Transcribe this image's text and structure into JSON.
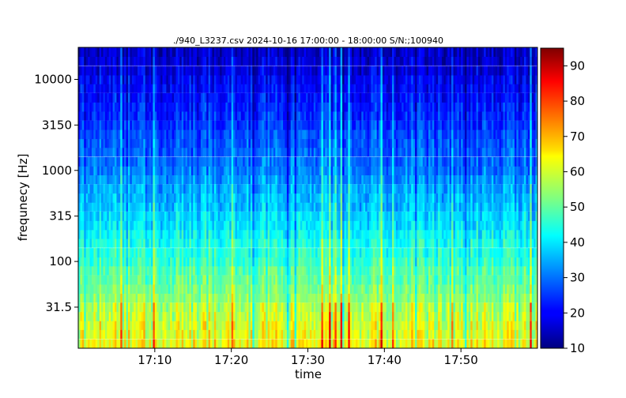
{
  "chart_data": {
    "type": "heatmap",
    "title": "./940_L3237.csv 2024-10-16 17:00:00 -  18:00:00  S/N:;100940",
    "xlabel": "time",
    "ylabel": "frequnecy [Hz]",
    "x_range": [
      "17:00:00",
      "18:00:00"
    ],
    "x_ticks": [
      "17:10",
      "17:20",
      "17:30",
      "17:40",
      "17:50"
    ],
    "y_scale": "log",
    "y_ticks": [
      "31.5",
      "100",
      "315",
      "1000",
      "3150",
      "10000"
    ],
    "bands_hz": [
      12.5,
      16,
      20,
      25,
      31.5,
      40,
      50,
      63,
      80,
      100,
      125,
      160,
      200,
      250,
      315,
      400,
      500,
      630,
      800,
      1000,
      1250,
      1600,
      2000,
      2500,
      3150,
      4000,
      5000,
      6300,
      8000,
      10000,
      12500,
      16000,
      20000
    ],
    "band_mean_level": [
      63,
      61,
      60,
      58,
      57,
      54,
      52,
      50,
      49,
      46,
      45,
      44,
      42,
      40,
      39,
      37,
      36,
      35,
      33,
      31,
      30,
      29,
      28,
      27,
      25,
      24,
      23,
      22,
      21,
      20,
      18,
      17,
      16
    ],
    "colorbar": {
      "colormap": "jet",
      "range": [
        10,
        95
      ],
      "ticks": [
        "10",
        "20",
        "30",
        "40",
        "50",
        "60",
        "70",
        "80",
        "90"
      ]
    }
  }
}
